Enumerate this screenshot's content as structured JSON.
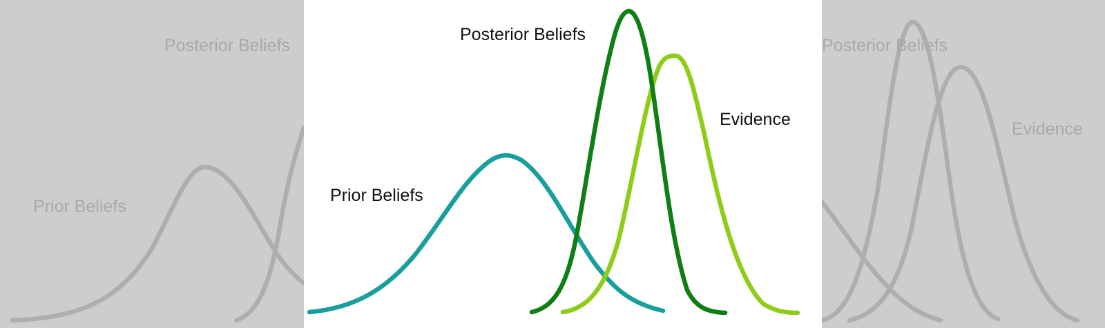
{
  "diagram": {
    "labels": {
      "prior": "Prior Beliefs",
      "posterior": "Posterior Beliefs",
      "evidence": "Evidence"
    },
    "colors": {
      "prior": "#199e9e",
      "posterior": "#0f7f14",
      "evidence": "#8fcc18",
      "ghost": "#adadad",
      "background": "#cdcdcd",
      "panel": "#ffffff"
    }
  }
}
